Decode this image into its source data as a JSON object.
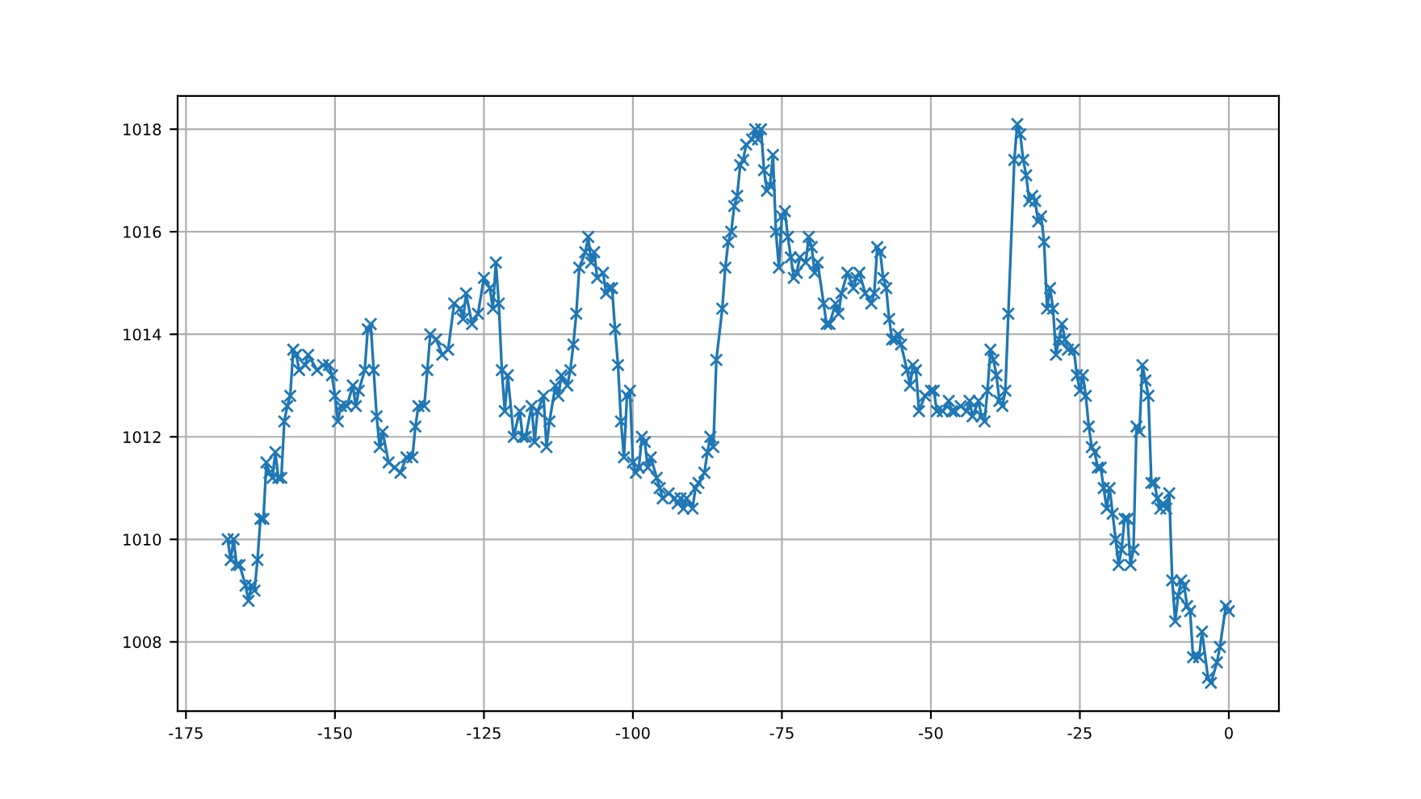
{
  "chart_data": {
    "type": "line",
    "marker": "cross",
    "line_style": "solid",
    "grid": true,
    "xlim": [
      -176.4,
      8.4
    ],
    "xticks": [
      -175,
      -150,
      -125,
      -100,
      -75,
      -50,
      -25,
      0
    ],
    "ylim": [
      1006.65,
      1018.65
    ],
    "yticks": [
      1008,
      1010,
      1012,
      1014,
      1016,
      1018
    ],
    "series": [
      {
        "color": "#1f77b4",
        "x": [
          -168,
          -167.5,
          -167,
          -166.5,
          -166,
          -165,
          -164.5,
          -164,
          -163.5,
          -163,
          -162.5,
          -162,
          -161.5,
          -161,
          -160.5,
          -160,
          -159.5,
          -159,
          -158.5,
          -158,
          -157.5,
          -157,
          -156.5,
          -156,
          -155,
          -154.5,
          -153,
          -152,
          -151,
          -150.5,
          -150,
          -149.5,
          -149,
          -148,
          -147,
          -146.5,
          -146,
          -145,
          -144.5,
          -144,
          -143.5,
          -143,
          -142.5,
          -142,
          -141,
          -140,
          -139,
          -138,
          -137,
          -136.5,
          -136,
          -135,
          -134.5,
          -134,
          -133,
          -132,
          -131,
          -130,
          -129,
          -128.5,
          -128,
          -127,
          -126,
          -125,
          -124,
          -123.5,
          -123,
          -122.5,
          -122,
          -121.5,
          -121,
          -120,
          -119,
          -118.5,
          -118,
          -117,
          -116.5,
          -116,
          -115,
          -114.5,
          -114,
          -113,
          -112.5,
          -112,
          -111,
          -110.5,
          -110,
          -109.5,
          -109,
          -108,
          -107.5,
          -107,
          -106.5,
          -106,
          -105,
          -104.5,
          -104,
          -103.5,
          -103,
          -102.5,
          -102,
          -101.5,
          -101,
          -100.5,
          -100,
          -99.5,
          -99,
          -98.5,
          -98,
          -97.5,
          -97,
          -96,
          -95.5,
          -95,
          -94,
          -93,
          -92.5,
          -92,
          -91.5,
          -91,
          -90,
          -89.5,
          -89,
          -88,
          -87.5,
          -87,
          -86.5,
          -86,
          -85,
          -84.5,
          -84,
          -83.5,
          -83,
          -82.5,
          -82,
          -81.5,
          -81,
          -80,
          -79.5,
          -79,
          -78.5,
          -78,
          -77.5,
          -77,
          -76.5,
          -76,
          -75.5,
          -75,
          -74.5,
          -74,
          -73.5,
          -73,
          -72.5,
          -72,
          -71,
          -70.5,
          -70,
          -69.5,
          -69,
          -68,
          -67.5,
          -67,
          -66,
          -65.5,
          -65,
          -64,
          -63,
          -62.5,
          -62,
          -61,
          -60,
          -59.5,
          -59,
          -58.5,
          -58,
          -57.5,
          -57,
          -56.5,
          -56,
          -55.5,
          -55,
          -54,
          -53.5,
          -53,
          -52.5,
          -52,
          -51,
          -50,
          -49.5,
          -49,
          -48,
          -47,
          -46.5,
          -46,
          -45,
          -44,
          -43.5,
          -43,
          -42,
          -41.5,
          -41,
          -40.5,
          -40,
          -39.5,
          -39,
          -38.5,
          -38,
          -37.5,
          -37,
          -36,
          -35.5,
          -35,
          -34.5,
          -34,
          -33.5,
          -33,
          -32.5,
          -32,
          -31.5,
          -31,
          -30.5,
          -30,
          -29.5,
          -29,
          -28.5,
          -28,
          -27.5,
          -27,
          -26,
          -25.5,
          -25,
          -24.5,
          -24,
          -23.5,
          -23,
          -22.5,
          -22,
          -21.5,
          -21,
          -20.5,
          -20,
          -19.5,
          -19,
          -18.5,
          -18,
          -17.5,
          -17,
          -16.5,
          -16,
          -15.5,
          -15,
          -14.5,
          -14,
          -13.5,
          -13,
          -12.5,
          -12,
          -11.5,
          -11,
          -10.5,
          -10,
          -9.5,
          -9,
          -8.5,
          -8,
          -7.5,
          -7,
          -6.5,
          -6,
          -5,
          -4.5,
          -3.5,
          -3,
          -2,
          -1.5,
          -0.5,
          0
        ],
        "values": [
          1010.0,
          1009.6,
          1010.0,
          1009.5,
          1009.5,
          1009.1,
          1008.8,
          1009.1,
          1009.0,
          1009.6,
          1010.4,
          1010.4,
          1011.5,
          1011.3,
          1011.2,
          1011.7,
          1011.2,
          1011.2,
          1012.3,
          1012.6,
          1012.8,
          1013.7,
          1013.6,
          1013.3,
          1013.4,
          1013.6,
          1013.3,
          1013.4,
          1013.4,
          1013.2,
          1012.8,
          1012.3,
          1012.6,
          1012.6,
          1013.0,
          1012.6,
          1012.9,
          1013.3,
          1014.1,
          1014.2,
          1013.3,
          1012.4,
          1011.8,
          1012.1,
          1011.5,
          1011.4,
          1011.3,
          1011.6,
          1011.6,
          1012.2,
          1012.6,
          1012.6,
          1013.3,
          1014.0,
          1013.9,
          1013.6,
          1013.7,
          1014.6,
          1014.5,
          1014.3,
          1014.8,
          1014.2,
          1014.4,
          1015.1,
          1014.9,
          1014.5,
          1015.4,
          1014.6,
          1013.3,
          1012.5,
          1013.2,
          1012.0,
          1012.5,
          1012.0,
          1012.0,
          1012.6,
          1011.9,
          1012.5,
          1012.8,
          1011.8,
          1012.3,
          1013.0,
          1012.8,
          1013.2,
          1013.0,
          1013.3,
          1013.8,
          1014.4,
          1015.3,
          1015.6,
          1015.9,
          1015.4,
          1015.6,
          1015.1,
          1015.2,
          1014.8,
          1014.9,
          1014.9,
          1014.1,
          1013.4,
          1012.3,
          1011.6,
          1012.8,
          1012.9,
          1011.5,
          1011.3,
          1011.4,
          1012.0,
          1011.9,
          1011.4,
          1011.6,
          1011.2,
          1011.0,
          1010.8,
          1010.9,
          1010.8,
          1010.7,
          1010.8,
          1010.6,
          1010.8,
          1010.6,
          1011.0,
          1011.1,
          1011.3,
          1011.7,
          1012.0,
          1011.8,
          1013.5,
          1014.5,
          1015.3,
          1015.8,
          1016.0,
          1016.5,
          1016.7,
          1017.3,
          1017.4,
          1017.7,
          1017.8,
          1018.0,
          1017.8,
          1018.0,
          1017.2,
          1016.8,
          1016.9,
          1017.5,
          1016.0,
          1015.3,
          1016.3,
          1016.4,
          1015.9,
          1015.5,
          1015.1,
          1015.2,
          1015.5,
          1015.4,
          1015.9,
          1015.7,
          1015.2,
          1015.4,
          1014.6,
          1014.2,
          1014.2,
          1014.6,
          1014.4,
          1014.8,
          1015.2,
          1014.9,
          1015.1,
          1015.2,
          1014.8,
          1014.6,
          1014.8,
          1015.7,
          1015.6,
          1015.1,
          1014.9,
          1014.3,
          1013.9,
          1013.9,
          1014.0,
          1013.8,
          1013.3,
          1013.0,
          1013.4,
          1013.3,
          1012.5,
          1012.8,
          1012.9,
          1012.9,
          1012.5,
          1012.5,
          1012.7,
          1012.5,
          1012.5,
          1012.6,
          1012.5,
          1012.7,
          1012.4,
          1012.7,
          1012.4,
          1012.3,
          1012.9,
          1013.7,
          1013.5,
          1013.2,
          1012.7,
          1012.6,
          1012.9,
          1014.4,
          1017.4,
          1018.1,
          1017.9,
          1017.4,
          1017.1,
          1016.6,
          1016.7,
          1016.6,
          1016.2,
          1016.3,
          1015.8,
          1014.5,
          1014.9,
          1014.5,
          1013.6,
          1013.9,
          1014.2,
          1013.9,
          1013.7,
          1013.7,
          1013.2,
          1012.9,
          1013.2,
          1012.8,
          1012.2,
          1011.8,
          1011.7,
          1011.4,
          1011.4,
          1011.0,
          1010.6,
          1011.0,
          1010.5,
          1010.0,
          1009.5,
          1009.8,
          1010.4,
          1010.4,
          1009.5,
          1009.8,
          1012.2,
          1012.1,
          1013.4,
          1013.1,
          1012.8,
          1011.1,
          1011.1,
          1010.8,
          1010.6,
          1010.7,
          1010.6,
          1010.9,
          1009.2,
          1008.4,
          1008.9,
          1009.2,
          1009.1,
          1008.7,
          1008.6,
          1007.7,
          1007.7,
          1008.2,
          1007.3,
          1007.2,
          1007.6,
          1007.9,
          1008.7,
          1008.6
        ]
      }
    ]
  }
}
